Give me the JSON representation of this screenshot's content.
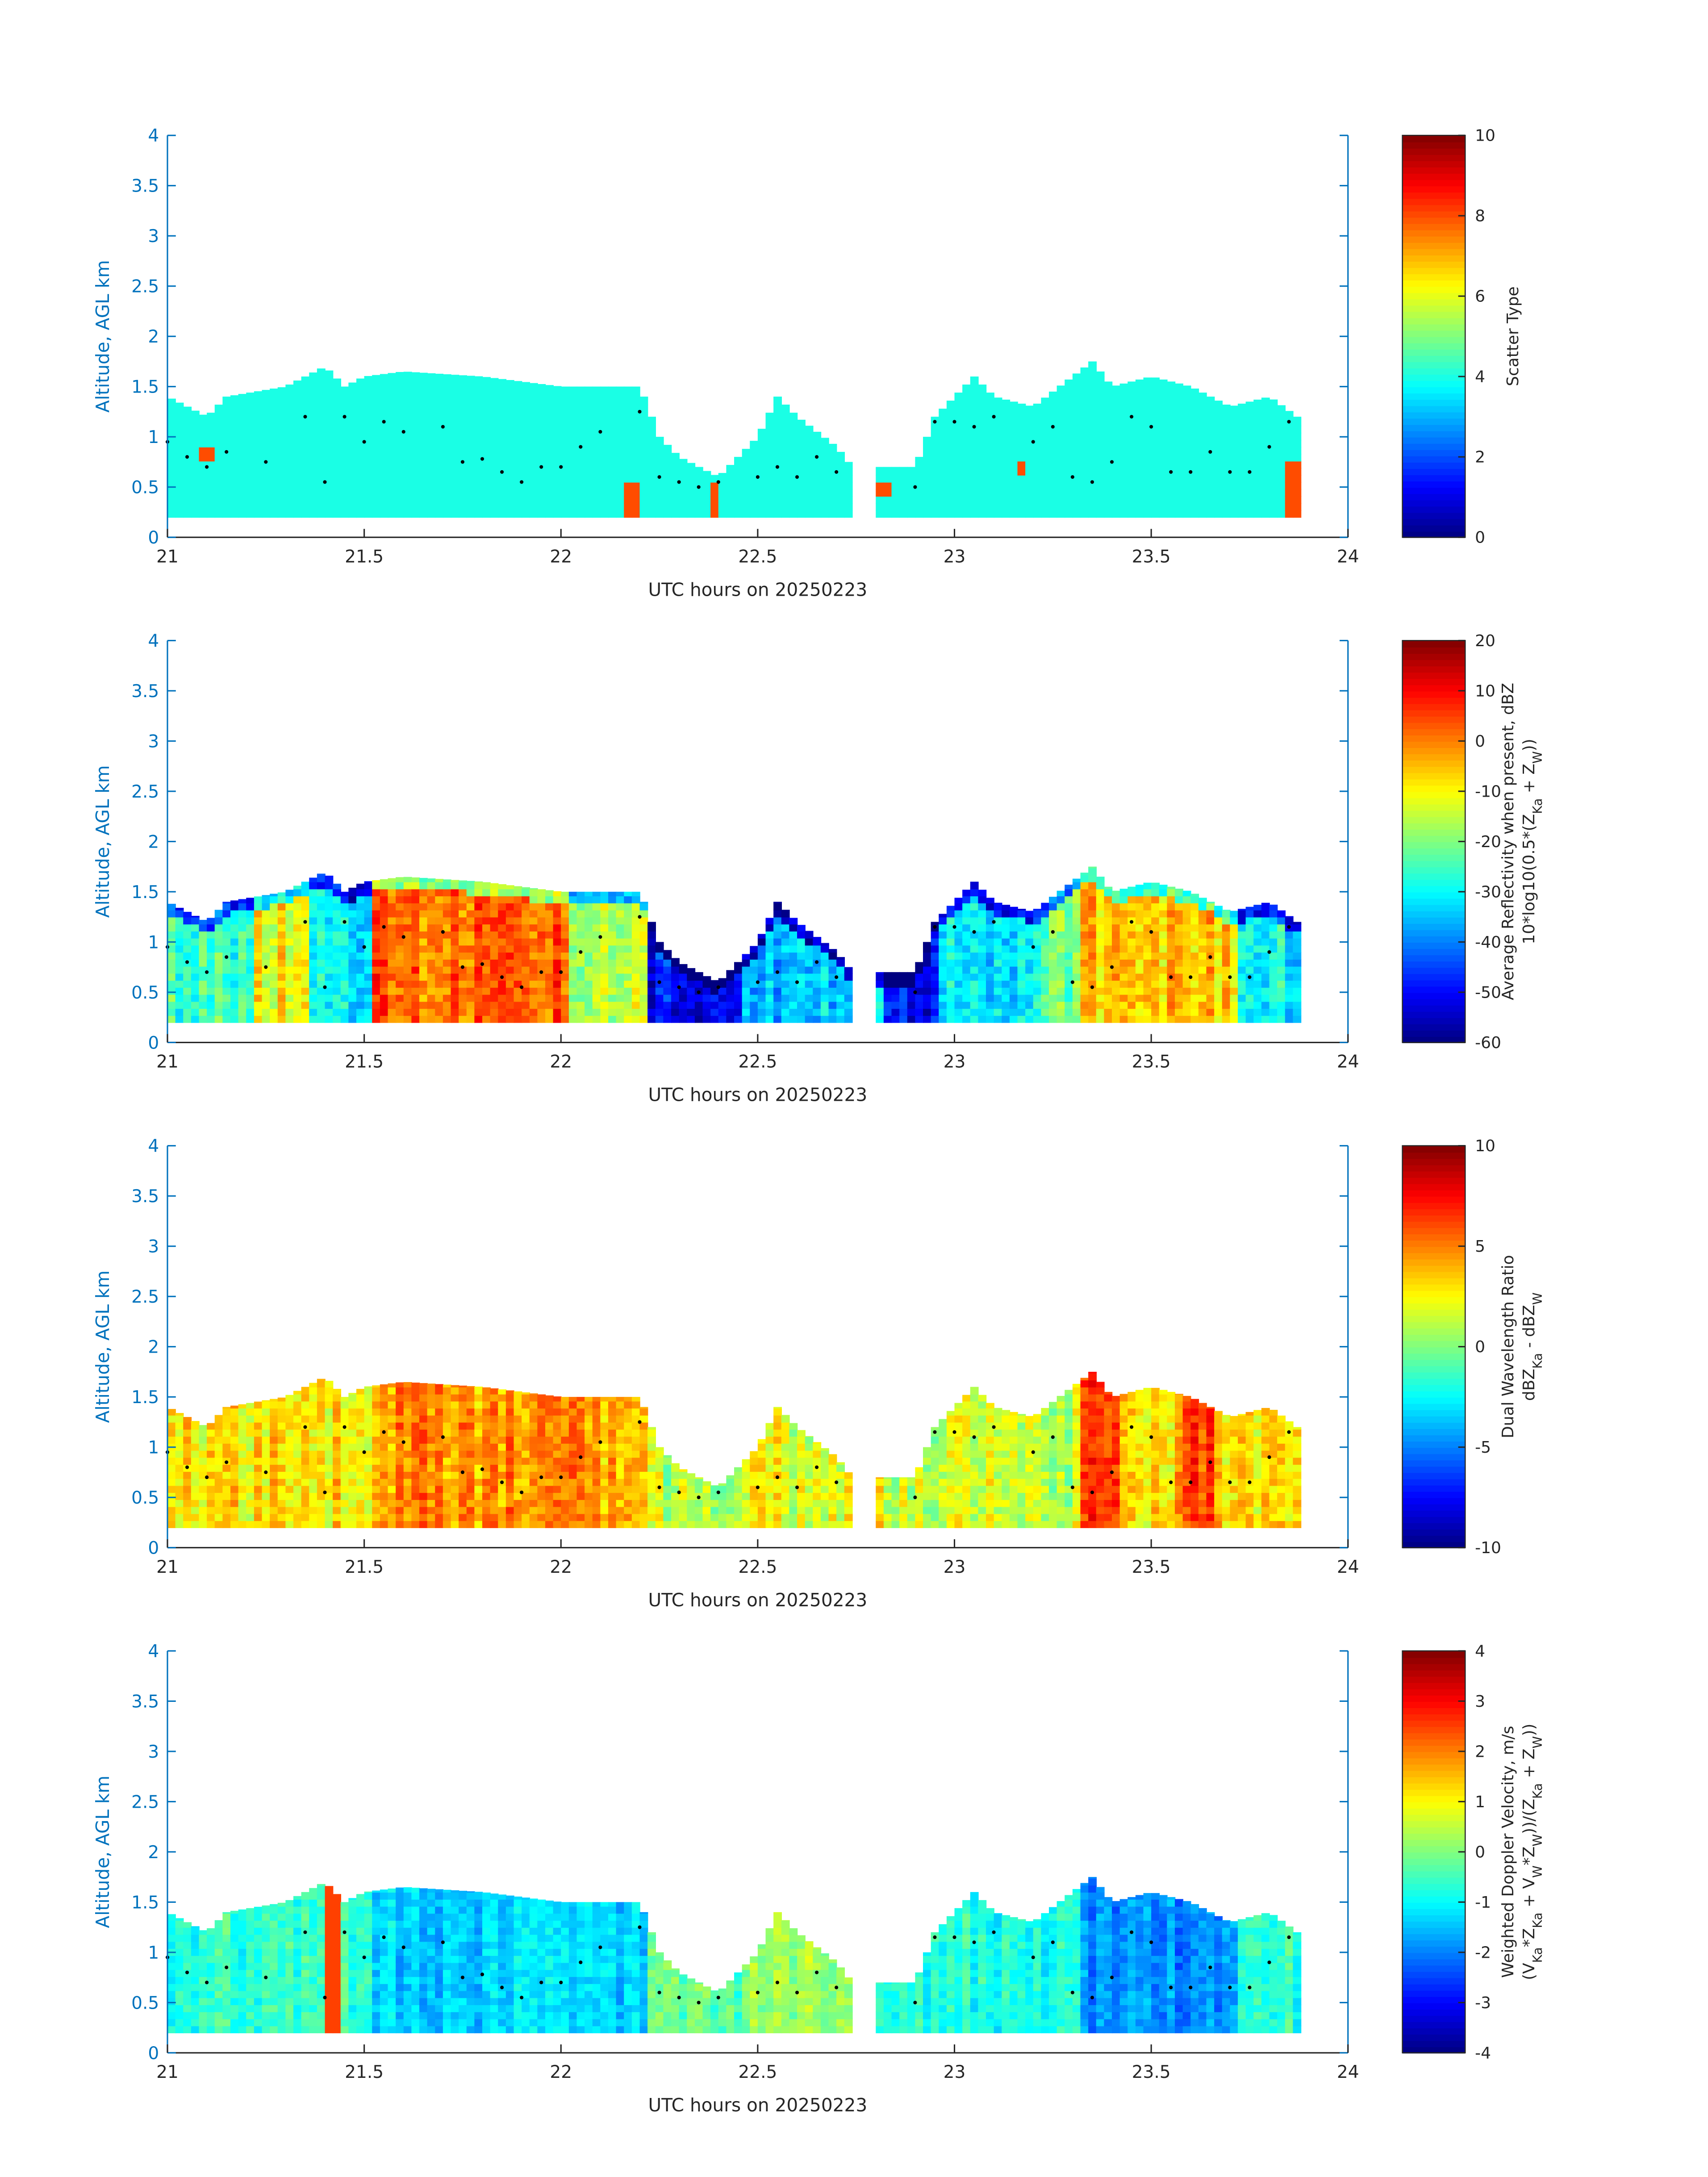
{
  "chart_data": [
    {
      "type": "heatmap",
      "xlabel": "UTC hours on 20250223",
      "ylabel": "Altitude, AGL km",
      "xlim": [
        21,
        24
      ],
      "ylim": [
        0,
        4
      ],
      "xticks": [
        "21",
        "21.5",
        "22",
        "22.5",
        "23",
        "23.5",
        "24"
      ],
      "yticks": [
        "0",
        "0.5",
        "1",
        "1.5",
        "2",
        "2.5",
        "3",
        "3.5",
        "4"
      ],
      "colorbar": {
        "label_lines": [
          "Scatter Type"
        ],
        "clim": [
          0,
          10
        ],
        "ticks": [
          "0",
          "2",
          "4",
          "6",
          "8",
          "10"
        ]
      },
      "base_value": 4,
      "noise": 0,
      "segments": [],
      "patches": [
        [
          21.08,
          21.1,
          0.75,
          0.9,
          8
        ],
        [
          22.15,
          22.18,
          0.2,
          0.55,
          8
        ],
        [
          22.37,
          22.39,
          0.2,
          0.55,
          8
        ],
        [
          22.8,
          22.82,
          0.4,
          0.55,
          8
        ],
        [
          23.15,
          23.17,
          0.6,
          0.7,
          8
        ],
        [
          23.83,
          23.86,
          0.2,
          0.75,
          8
        ]
      ]
    },
    {
      "type": "heatmap",
      "xlabel": "UTC hours on 20250223",
      "ylabel": "Altitude, AGL km",
      "xlim": [
        21,
        24
      ],
      "ylim": [
        0,
        4
      ],
      "xticks": [
        "21",
        "21.5",
        "22",
        "22.5",
        "23",
        "23.5",
        "24"
      ],
      "yticks": [
        "0",
        "0.5",
        "1",
        "1.5",
        "2",
        "2.5",
        "3",
        "3.5",
        "4"
      ],
      "colorbar": {
        "label_lines": [
          "Average Reflectivity when present, dBZ",
          "10*log10(0.5*(Z_Ka + Z_W))"
        ],
        "clim": [
          -60,
          20
        ],
        "ticks": [
          "-60",
          "-50",
          "-40",
          "-30",
          "-20",
          "-10",
          "0",
          "10",
          "20"
        ]
      },
      "base_value": -30,
      "noise": 10,
      "segments": [
        [
          21.0,
          21.2,
          -25
        ],
        [
          21.2,
          21.35,
          -10
        ],
        [
          21.35,
          21.5,
          -30
        ],
        [
          21.5,
          22.0,
          2
        ],
        [
          22.0,
          22.2,
          -15
        ],
        [
          22.2,
          22.45,
          -50
        ],
        [
          22.45,
          22.75,
          -35
        ],
        [
          22.8,
          22.95,
          -50
        ],
        [
          22.95,
          23.2,
          -30
        ],
        [
          23.2,
          23.3,
          -20
        ],
        [
          23.3,
          23.7,
          -5
        ],
        [
          23.7,
          23.9,
          -30
        ]
      ],
      "patches": []
    },
    {
      "type": "heatmap",
      "xlabel": "UTC hours on 20250223",
      "ylabel": "Altitude, AGL km",
      "xlim": [
        21,
        24
      ],
      "ylim": [
        0,
        4
      ],
      "xticks": [
        "21",
        "21.5",
        "22",
        "22.5",
        "23",
        "23.5",
        "24"
      ],
      "yticks": [
        "0",
        "0.5",
        "1",
        "1.5",
        "2",
        "2.5",
        "3",
        "3.5",
        "4"
      ],
      "colorbar": {
        "label_lines": [
          "Dual Wavelength Ratio",
          "dBZ_Ka - dBZ_W"
        ],
        "clim": [
          -10,
          10
        ],
        "ticks": [
          "-10",
          "-5",
          "0",
          "5",
          "10"
        ]
      },
      "base_value": 3,
      "noise": 2.5,
      "segments": [
        [
          21.0,
          21.5,
          3
        ],
        [
          21.5,
          22.2,
          4.5
        ],
        [
          22.2,
          22.45,
          1
        ],
        [
          22.45,
          22.75,
          2
        ],
        [
          22.8,
          23.3,
          1.5
        ],
        [
          23.3,
          23.4,
          6
        ],
        [
          23.4,
          23.55,
          3
        ],
        [
          23.55,
          23.65,
          6
        ],
        [
          23.65,
          23.9,
          3
        ]
      ],
      "patches": []
    },
    {
      "type": "heatmap",
      "xlabel": "UTC hours on 20250223",
      "ylabel": "Altitude, AGL km",
      "xlim": [
        21,
        24
      ],
      "ylim": [
        0,
        4
      ],
      "xticks": [
        "21",
        "21.5",
        "22",
        "22.5",
        "23",
        "23.5",
        "24"
      ],
      "yticks": [
        "0",
        "0.5",
        "1",
        "1.5",
        "2",
        "2.5",
        "3",
        "3.5",
        "4"
      ],
      "colorbar": {
        "label_lines": [
          "Weighted Doppler Velocity, m/s",
          "(V_Ka*Z_Ka + V_W*Z_W))/(Z_Ka + Z_W))"
        ],
        "clim": [
          -4,
          4
        ],
        "ticks": [
          "-4",
          "-3",
          "-2",
          "-1",
          "0",
          "1",
          "2",
          "3",
          "4"
        ]
      },
      "base_value": -0.8,
      "noise": 0.7,
      "segments": [
        [
          21.0,
          21.5,
          -0.6
        ],
        [
          21.5,
          22.2,
          -1.3
        ],
        [
          22.2,
          22.45,
          -0.3
        ],
        [
          22.45,
          22.75,
          0.2
        ],
        [
          22.8,
          23.3,
          -0.8
        ],
        [
          23.3,
          23.7,
          -1.9
        ],
        [
          23.7,
          23.9,
          -0.7
        ]
      ],
      "patches": [
        [
          21.4,
          21.42,
          0.2,
          1.7,
          2.5
        ]
      ]
    }
  ],
  "cloud_top": {
    "time": [
      21.0,
      21.05,
      21.1,
      21.15,
      21.3,
      21.4,
      21.45,
      21.5,
      21.6,
      21.8,
      22.0,
      22.2,
      22.25,
      22.3,
      22.4,
      22.5,
      22.55,
      22.6,
      22.7,
      22.74,
      22.81,
      22.9,
      22.95,
      23.0,
      23.05,
      23.1,
      23.2,
      23.3,
      23.35,
      23.4,
      23.5,
      23.6,
      23.7,
      23.8,
      23.87
    ],
    "top_km": [
      1.4,
      1.3,
      1.2,
      1.4,
      1.5,
      1.7,
      1.5,
      1.6,
      1.65,
      1.6,
      1.5,
      1.5,
      1.0,
      0.8,
      0.6,
      1.0,
      1.4,
      1.2,
      0.9,
      0.7,
      0.7,
      0.7,
      1.2,
      1.4,
      1.6,
      1.4,
      1.3,
      1.6,
      1.75,
      1.5,
      1.6,
      1.5,
      1.3,
      1.4,
      1.2
    ],
    "base_km": 0.2,
    "gap": [
      22.74,
      22.8
    ]
  },
  "dots": {
    "time": [
      21.0,
      21.05,
      21.1,
      21.15,
      21.25,
      21.35,
      21.4,
      21.45,
      21.5,
      21.55,
      21.6,
      21.7,
      21.75,
      21.8,
      21.85,
      21.9,
      21.95,
      22.0,
      22.05,
      22.1,
      22.2,
      22.25,
      22.3,
      22.35,
      22.4,
      22.5,
      22.55,
      22.6,
      22.65,
      22.7,
      22.9,
      22.95,
      23.0,
      23.05,
      23.1,
      23.2,
      23.25,
      23.3,
      23.35,
      23.4,
      23.45,
      23.5,
      23.55,
      23.6,
      23.65,
      23.7,
      23.75,
      23.8,
      23.85
    ],
    "alt_km": [
      0.95,
      0.8,
      0.7,
      0.85,
      0.75,
      1.2,
      0.55,
      1.2,
      0.95,
      1.15,
      1.05,
      1.1,
      0.75,
      0.78,
      0.65,
      0.55,
      0.7,
      0.7,
      0.9,
      1.05,
      1.25,
      0.6,
      0.55,
      0.5,
      0.55,
      0.6,
      0.7,
      0.6,
      0.8,
      0.65,
      0.5,
      1.15,
      1.15,
      1.1,
      1.2,
      0.95,
      1.1,
      0.6,
      0.55,
      0.75,
      1.2,
      1.1,
      0.65,
      0.65,
      0.85,
      0.65,
      0.65,
      0.9,
      1.15
    ]
  }
}
